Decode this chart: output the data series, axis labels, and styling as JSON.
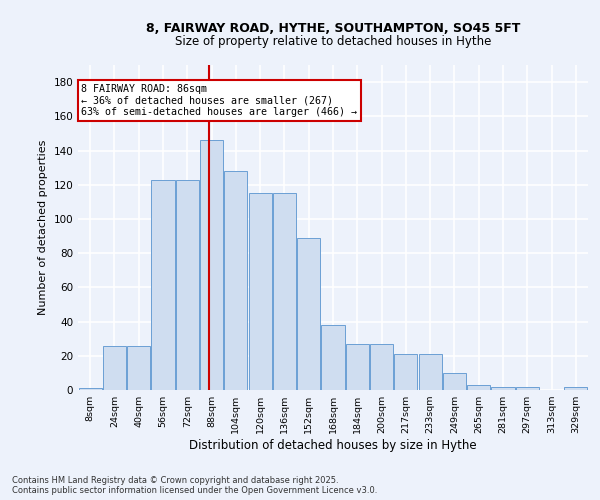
{
  "title_line1": "8, FAIRWAY ROAD, HYTHE, SOUTHAMPTON, SO45 5FT",
  "title_line2": "Size of property relative to detached houses in Hythe",
  "xlabel": "Distribution of detached houses by size in Hythe",
  "ylabel": "Number of detached properties",
  "categories": [
    "8sqm",
    "24sqm",
    "40sqm",
    "56sqm",
    "72sqm",
    "88sqm",
    "104sqm",
    "120sqm",
    "136sqm",
    "152sqm",
    "168sqm",
    "184sqm",
    "200sqm",
    "217sqm",
    "233sqm",
    "249sqm",
    "265sqm",
    "281sqm",
    "297sqm",
    "313sqm",
    "329sqm"
  ],
  "values": [
    1,
    26,
    26,
    123,
    123,
    146,
    128,
    115,
    115,
    89,
    38,
    27,
    27,
    21,
    21,
    10,
    3,
    2,
    2,
    0,
    2
  ],
  "bar_color": "#cfddf0",
  "bar_edge_color": "#6b9fd4",
  "vline_color": "#cc0000",
  "vline_x": 86,
  "annotation_text": "8 FAIRWAY ROAD: 86sqm\n← 36% of detached houses are smaller (267)\n63% of semi-detached houses are larger (466) →",
  "annotation_box_color": "#ffffff",
  "annotation_box_edge": "#cc0000",
  "footer_text": "Contains HM Land Registry data © Crown copyright and database right 2025.\nContains public sector information licensed under the Open Government Licence v3.0.",
  "ylim": [
    0,
    190
  ],
  "yticks": [
    0,
    20,
    40,
    60,
    80,
    100,
    120,
    140,
    160,
    180
  ],
  "background_color": "#edf2fb",
  "grid_color": "#ffffff",
  "bin_width": 16
}
